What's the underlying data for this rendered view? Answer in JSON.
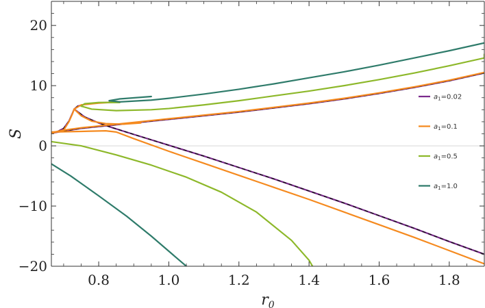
{
  "chart_data": {
    "type": "line",
    "xlabel": "r",
    "xlabel_sub": "0",
    "ylabel": "S",
    "xlim": [
      0.665,
      1.9
    ],
    "ylim": [
      -20,
      24
    ],
    "x_ticks": [
      0.8,
      1.0,
      1.2,
      1.4,
      1.6,
      1.8
    ],
    "y_ticks": [
      -20,
      -10,
      0,
      10,
      20
    ],
    "x_tick_labels": [
      "0.8",
      "1.0",
      "1.2",
      "1.4",
      "1.6",
      "1.8"
    ],
    "y_tick_labels": [
      "−20",
      "−10",
      "0",
      "10",
      "20"
    ],
    "grid": false,
    "legend_position": "right",
    "zero_line": true,
    "series": [
      {
        "name": "a1=0.02",
        "legend_main": "a",
        "legend_sub": "1",
        "legend_rest": "=0.02",
        "color": "#7a2a8c",
        "dashed_overlay": true,
        "branches": [
          [
            [
              0.665,
              2.1
            ],
            [
              0.68,
              2.3
            ],
            [
              0.7,
              2.9
            ],
            [
              0.715,
              4.1
            ],
            [
              0.725,
              5.4
            ],
            [
              0.73,
              6.1
            ],
            [
              0.74,
              6.6
            ],
            [
              0.76,
              6.9
            ],
            [
              0.8,
              7.15
            ],
            [
              0.86,
              7.3
            ]
          ],
          [
            [
              0.665,
              2.1
            ],
            [
              0.7,
              2.45
            ],
            [
              0.75,
              2.9
            ],
            [
              0.8,
              3.2
            ],
            [
              0.85,
              3.5
            ],
            [
              0.9,
              3.8
            ],
            [
              1.0,
              4.4
            ],
            [
              1.1,
              5.0
            ],
            [
              1.2,
              5.6
            ],
            [
              1.3,
              6.3
            ],
            [
              1.4,
              7.0
            ],
            [
              1.5,
              7.8
            ],
            [
              1.6,
              8.7
            ],
            [
              1.7,
              9.7
            ],
            [
              1.8,
              10.8
            ],
            [
              1.9,
              12.1
            ]
          ],
          [
            [
              0.73,
              6.1
            ],
            [
              0.76,
              4.8
            ],
            [
              0.8,
              3.8
            ],
            [
              0.84,
              3.0
            ],
            [
              0.9,
              1.9
            ],
            [
              1.0,
              0.1
            ],
            [
              1.1,
              -1.7
            ],
            [
              1.2,
              -3.6
            ],
            [
              1.3,
              -5.5
            ],
            [
              1.4,
              -7.5
            ],
            [
              1.5,
              -9.5
            ],
            [
              1.6,
              -11.6
            ],
            [
              1.7,
              -13.7
            ],
            [
              1.8,
              -15.9
            ],
            [
              1.9,
              -18.0
            ]
          ]
        ]
      },
      {
        "name": "a1=0.1",
        "legend_main": "a",
        "legend_sub": "1",
        "legend_rest": "=0.1",
        "color": "#f58a1f",
        "branches": [
          [
            [
              0.665,
              2.1
            ],
            [
              0.7,
              2.6
            ],
            [
              0.715,
              4.0
            ],
            [
              0.725,
              5.3
            ],
            [
              0.73,
              6.1
            ],
            [
              0.75,
              6.8
            ],
            [
              0.8,
              7.1
            ],
            [
              0.86,
              7.3
            ]
          ],
          [
            [
              0.665,
              2.2
            ],
            [
              0.7,
              2.6
            ],
            [
              0.75,
              3.0
            ],
            [
              0.8,
              3.3
            ],
            [
              0.85,
              3.6
            ],
            [
              0.9,
              3.9
            ],
            [
              1.0,
              4.5
            ],
            [
              1.1,
              5.1
            ],
            [
              1.2,
              5.7
            ],
            [
              1.3,
              6.4
            ],
            [
              1.4,
              7.1
            ],
            [
              1.5,
              7.9
            ],
            [
              1.6,
              8.8
            ],
            [
              1.7,
              9.8
            ],
            [
              1.8,
              10.9
            ],
            [
              1.9,
              12.2
            ]
          ],
          [
            [
              0.73,
              6.1
            ],
            [
              0.75,
              5.0
            ],
            [
              0.78,
              4.1
            ],
            [
              0.82,
              3.7
            ],
            [
              0.87,
              3.6
            ],
            [
              0.92,
              3.8
            ]
          ],
          [
            [
              0.665,
              2.3
            ],
            [
              0.75,
              2.4
            ],
            [
              0.82,
              2.5
            ],
            [
              0.85,
              2.3
            ],
            [
              0.9,
              1.2
            ],
            [
              1.0,
              -0.9
            ],
            [
              1.1,
              -2.9
            ],
            [
              1.2,
              -4.9
            ],
            [
              1.3,
              -6.9
            ],
            [
              1.4,
              -8.9
            ],
            [
              1.5,
              -11.0
            ],
            [
              1.6,
              -13.1
            ],
            [
              1.7,
              -15.2
            ],
            [
              1.8,
              -17.4
            ],
            [
              1.9,
              -19.6
            ]
          ]
        ]
      },
      {
        "name": "a1=0.5",
        "legend_main": "a",
        "legend_sub": "1",
        "legend_rest": "=0.5",
        "color": "#8db82a",
        "branches": [
          [
            [
              0.75,
              6.6
            ],
            [
              0.76,
              7.0
            ],
            [
              0.8,
              7.2
            ],
            [
              0.86,
              7.2
            ]
          ],
          [
            [
              0.75,
              6.6
            ],
            [
              0.78,
              6.1
            ],
            [
              0.85,
              5.85
            ],
            [
              0.95,
              6.0
            ],
            [
              1.0,
              6.2
            ],
            [
              1.1,
              6.8
            ],
            [
              1.2,
              7.5
            ],
            [
              1.3,
              8.3
            ],
            [
              1.4,
              9.1
            ],
            [
              1.5,
              10.0
            ],
            [
              1.6,
              11.0
            ],
            [
              1.7,
              12.1
            ],
            [
              1.8,
              13.3
            ],
            [
              1.9,
              14.6
            ],
            [
              1.9,
              15.2
            ]
          ],
          [
            [
              0.665,
              0.7
            ],
            [
              0.75,
              0.0
            ],
            [
              0.85,
              -1.5
            ],
            [
              0.95,
              -3.2
            ],
            [
              1.05,
              -5.2
            ],
            [
              1.15,
              -7.7
            ],
            [
              1.25,
              -11.0
            ],
            [
              1.35,
              -15.7
            ],
            [
              1.4,
              -19.0
            ],
            [
              1.41,
              -20.0
            ]
          ]
        ]
      },
      {
        "name": "a1=1.0",
        "legend_main": "a",
        "legend_sub": "1",
        "legend_rest": "=1.0",
        "color": "#2e7b6a",
        "branches": [
          [
            [
              0.83,
              7.5
            ],
            [
              0.86,
              7.8
            ],
            [
              0.95,
              8.2
            ]
          ],
          [
            [
              0.83,
              7.5
            ],
            [
              0.86,
              7.3
            ],
            [
              0.95,
              7.6
            ],
            [
              1.0,
              7.9
            ],
            [
              1.1,
              8.6
            ],
            [
              1.2,
              9.4
            ],
            [
              1.3,
              10.3
            ],
            [
              1.4,
              11.3
            ],
            [
              1.5,
              12.3
            ],
            [
              1.6,
              13.4
            ],
            [
              1.7,
              14.6
            ],
            [
              1.8,
              15.8
            ],
            [
              1.9,
              17.1
            ]
          ],
          [
            [
              0.665,
              -3.0
            ],
            [
              0.72,
              -5.0
            ],
            [
              0.8,
              -8.3
            ],
            [
              0.88,
              -11.7
            ],
            [
              0.95,
              -15.0
            ],
            [
              1.0,
              -17.5
            ],
            [
              1.05,
              -20.0
            ]
          ]
        ]
      }
    ]
  }
}
